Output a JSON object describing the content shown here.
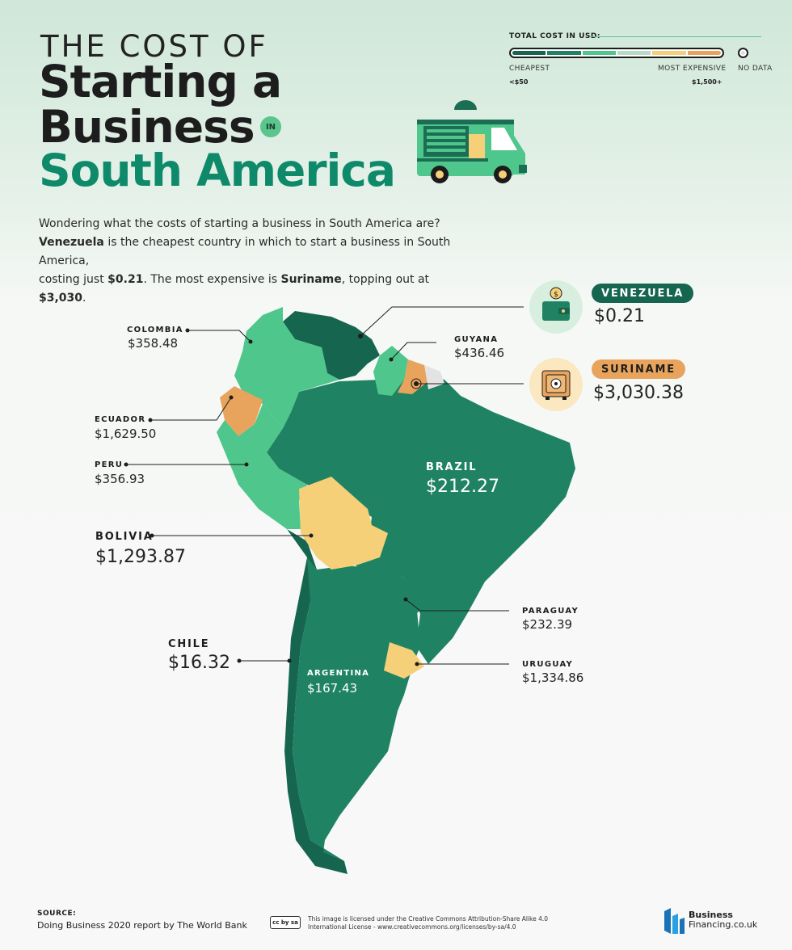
{
  "title": {
    "line1": "THE COST OF",
    "line2": "Starting a",
    "line3": "Business",
    "in": "IN",
    "line4": "South America"
  },
  "intro": {
    "sentence1": "Wondering what the costs of starting a business in South America are?",
    "cheapest_country": "Venezuela",
    "sentence2a": " is the cheapest country in which to start a business in South America,",
    "sentence2b": "costing just ",
    "cheapest_cost": "$0.21",
    "sentence3": ". The most expensive is ",
    "expensive_country": "Suriname",
    "sentence4": ", topping out at ",
    "expensive_cost": "$3,030",
    "end": "."
  },
  "legend": {
    "title": "TOTAL COST IN USD:",
    "cheapest_label": "CHEAPEST",
    "cheapest_value": "<$50",
    "expensive_label": "MOST EXPENSIVE",
    "expensive_value": "$1,500+",
    "nodata_label": "NO DATA",
    "scale_colors": [
      "#16664f",
      "#1f8363",
      "#4ec68c",
      "#b7dcc5",
      "#f6cf79",
      "#e8a45d"
    ],
    "nodata_color": "#e3e3e3"
  },
  "countries": {
    "colombia": {
      "name": "COLOMBIA",
      "cost": "$358.48"
    },
    "venezuela": {
      "name": "VENEZUELA",
      "cost": "$0.21"
    },
    "guyana": {
      "name": "GUYANA",
      "cost": "$436.46"
    },
    "suriname": {
      "name": "SURINAME",
      "cost": "$3,030.38"
    },
    "ecuador": {
      "name": "ECUADOR",
      "cost": "$1,629.50"
    },
    "peru": {
      "name": "PERU",
      "cost": "$356.93"
    },
    "brazil": {
      "name": "BRAZIL",
      "cost": "$212.27"
    },
    "bolivia": {
      "name": "BOLIVIA",
      "cost": "$1,293.87"
    },
    "paraguay": {
      "name": "PARAGUAY",
      "cost": "$232.39"
    },
    "chile": {
      "name": "CHILE",
      "cost": "$16.32"
    },
    "argentina": {
      "name": "ARGENTINA",
      "cost": "$167.43"
    },
    "uruguay": {
      "name": "URUGUAY",
      "cost": "$1,334.86"
    }
  },
  "colors": {
    "darkest": "#16664f",
    "dark": "#1f8363",
    "medium": "#4ec68c",
    "yellow": "#f6cf79",
    "orange": "#e8a45d",
    "title_green": "#0e8a6a"
  },
  "footer": {
    "source_label": "SOURCE:",
    "source_text": "Doing Business 2020 report by The World Bank",
    "cc_badge": "cc by sa",
    "license_line1": "This image is licensed under the Creative Commons Attribution-Share Alike 4.0",
    "license_line2": "International License - www.creativecommons.org/licenses/by-sa/4.0",
    "logo_line1": "Business",
    "logo_line2": "Financing.co.uk"
  },
  "icons": {
    "truck": "food-truck-icon",
    "wallet": "wallet-coin-icon",
    "safe": "safe-icon"
  }
}
